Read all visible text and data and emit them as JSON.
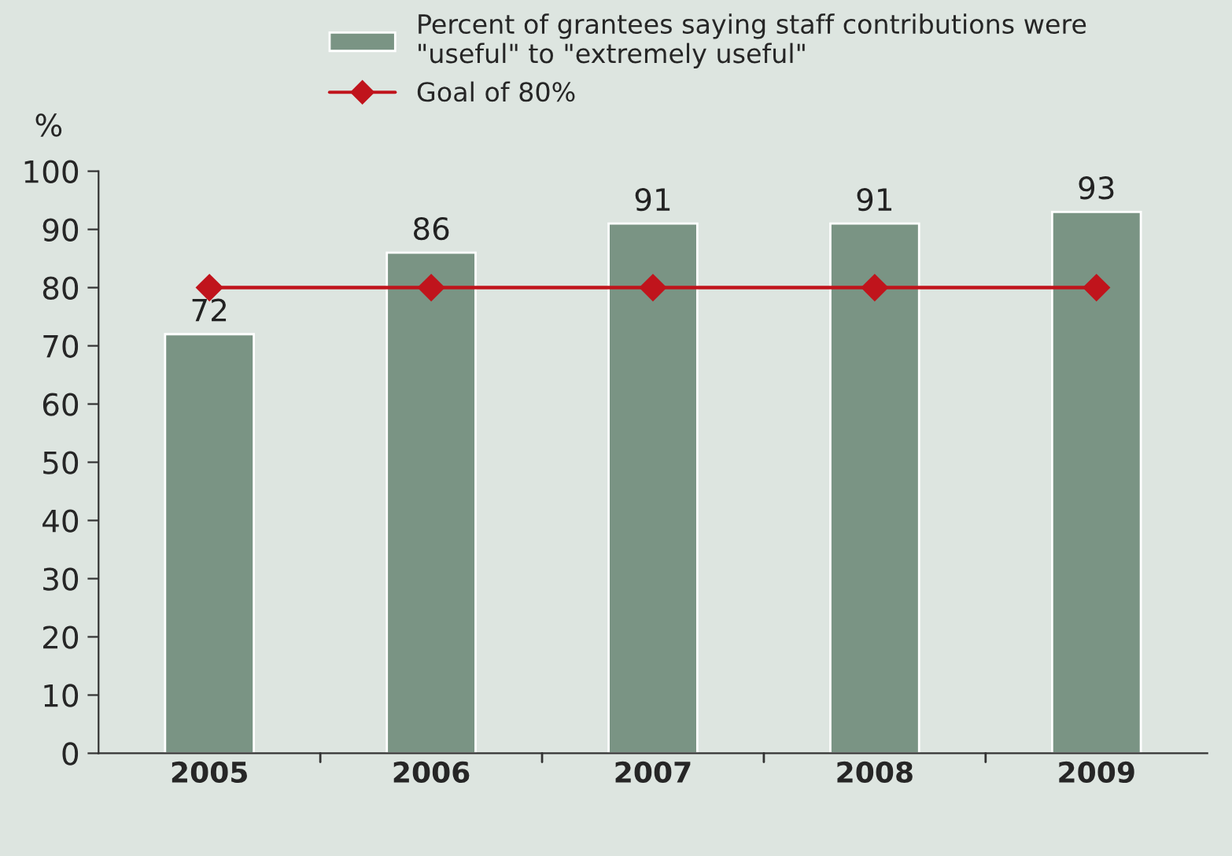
{
  "chart_data": {
    "type": "bar",
    "ylabel": "%",
    "categories": [
      "2005",
      "2006",
      "2007",
      "2008",
      "2009"
    ],
    "series": [
      {
        "name": "Percent of grantees saying staff contributions were\n\"useful\" to \"extremely useful\"",
        "color": "#7a9484",
        "values": [
          72,
          86,
          91,
          91,
          93
        ],
        "value_labels": [
          "72",
          "86",
          "91",
          "91",
          "93"
        ]
      },
      {
        "name": "Goal of 80%",
        "type": "line",
        "color": "#c0141c",
        "values": [
          80,
          80,
          80,
          80,
          80
        ],
        "marker": "diamond",
        "line_style": "solid"
      }
    ],
    "ylim": [
      0,
      100
    ],
    "yticks": [
      0,
      10,
      20,
      30,
      40,
      50,
      60,
      70,
      80,
      90,
      100
    ],
    "grid": false,
    "legend": "top"
  }
}
